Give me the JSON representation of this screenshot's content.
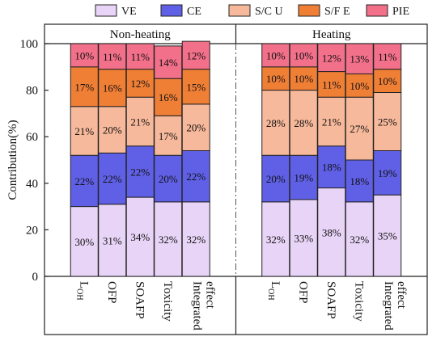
{
  "chart_data": {
    "type": "bar",
    "stacked": true,
    "ylabel": "Contribution(%)",
    "ylim": [
      0,
      100
    ],
    "yticks": [
      0,
      20,
      40,
      60,
      80,
      100
    ],
    "legend_position": "top",
    "categories": [
      "L_OH",
      "OFP",
      "SOAFP",
      "Toxicity",
      "Integrated effect"
    ],
    "category_labels": [
      {
        "main": "L",
        "sub": "OH"
      },
      {
        "main": "OFP"
      },
      {
        "main": "SOAFP"
      },
      {
        "main": "Toxicity"
      },
      {
        "lines": [
          "Integrated",
          "effect"
        ]
      }
    ],
    "series": [
      {
        "name": "VE",
        "color": "#e8d4f7"
      },
      {
        "name": "CE",
        "color": "#6060e6"
      },
      {
        "name": "S/C U",
        "color": "#f7b99b"
      },
      {
        "name": "S/F E",
        "color": "#f07f36"
      },
      {
        "name": "PIE",
        "color": "#f2708a"
      }
    ],
    "panels": [
      {
        "title": "Non-heating",
        "values": {
          "VE": [
            30,
            31,
            34,
            32,
            32
          ],
          "CE": [
            22,
            22,
            22,
            20,
            22
          ],
          "S/C U": [
            21,
            20,
            21,
            17,
            20
          ],
          "S/F E": [
            17,
            16,
            12,
            16,
            15
          ],
          "PIE": [
            10,
            11,
            11,
            14,
            12
          ]
        },
        "labels": {
          "VE": [
            "30%",
            "31%",
            "34%",
            "32%",
            "32%"
          ],
          "CE": [
            "22%",
            "22%",
            "22%",
            "20%",
            "22%"
          ],
          "S/C U": [
            "21%",
            "20%",
            "21%",
            "17%",
            "20%"
          ],
          "S/F E": [
            "17%",
            "16%",
            "12%",
            "16%",
            "15%"
          ],
          "PIE": [
            "10%",
            "11%",
            "11%",
            "14%",
            "12%"
          ]
        }
      },
      {
        "title": "Heating",
        "values": {
          "VE": [
            32,
            33,
            38,
            32,
            35
          ],
          "CE": [
            20,
            19,
            18,
            18,
            19
          ],
          "S/C U": [
            28,
            28,
            21,
            27,
            25
          ],
          "S/F E": [
            10,
            10,
            11,
            10,
            10
          ],
          "PIE": [
            10,
            10,
            12,
            13,
            11
          ]
        },
        "labels": {
          "VE": [
            "32%",
            "33%",
            "38%",
            "32%",
            "35%"
          ],
          "CE": [
            "20%",
            "19%",
            "18%",
            "18%",
            "19%"
          ],
          "S/C U": [
            "28%",
            "28%",
            "21%",
            "27%",
            "25%"
          ],
          "S/F E": [
            "10%",
            "10%",
            "11%",
            "10%",
            "10%"
          ],
          "PIE": [
            "10%",
            "10%",
            "12%",
            "13%",
            "11%"
          ]
        }
      }
    ]
  }
}
